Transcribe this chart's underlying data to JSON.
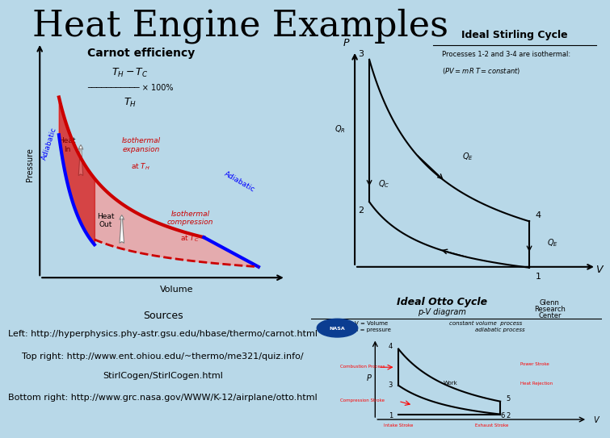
{
  "title": "Heat Engine Examples",
  "background_color": "#b8d8e8",
  "title_fontsize": 32,
  "title_color": "#000000",
  "sources_title": "Sources",
  "source_left": "Left: http://hyperphysics.phy-astr.gsu.edu/hbase/thermo/carnot.html",
  "source_topright_1": "Top right: http://www.ent.ohiou.edu/~thermo/me321/quiz.info/",
  "source_topright_2": "StirlCogen/StirlCogen.html",
  "source_bottomright": "Bottom right: http://www.grc.nasa.gov/WWW/K-12/airplane/otto.html",
  "sources_fontsize": 8
}
